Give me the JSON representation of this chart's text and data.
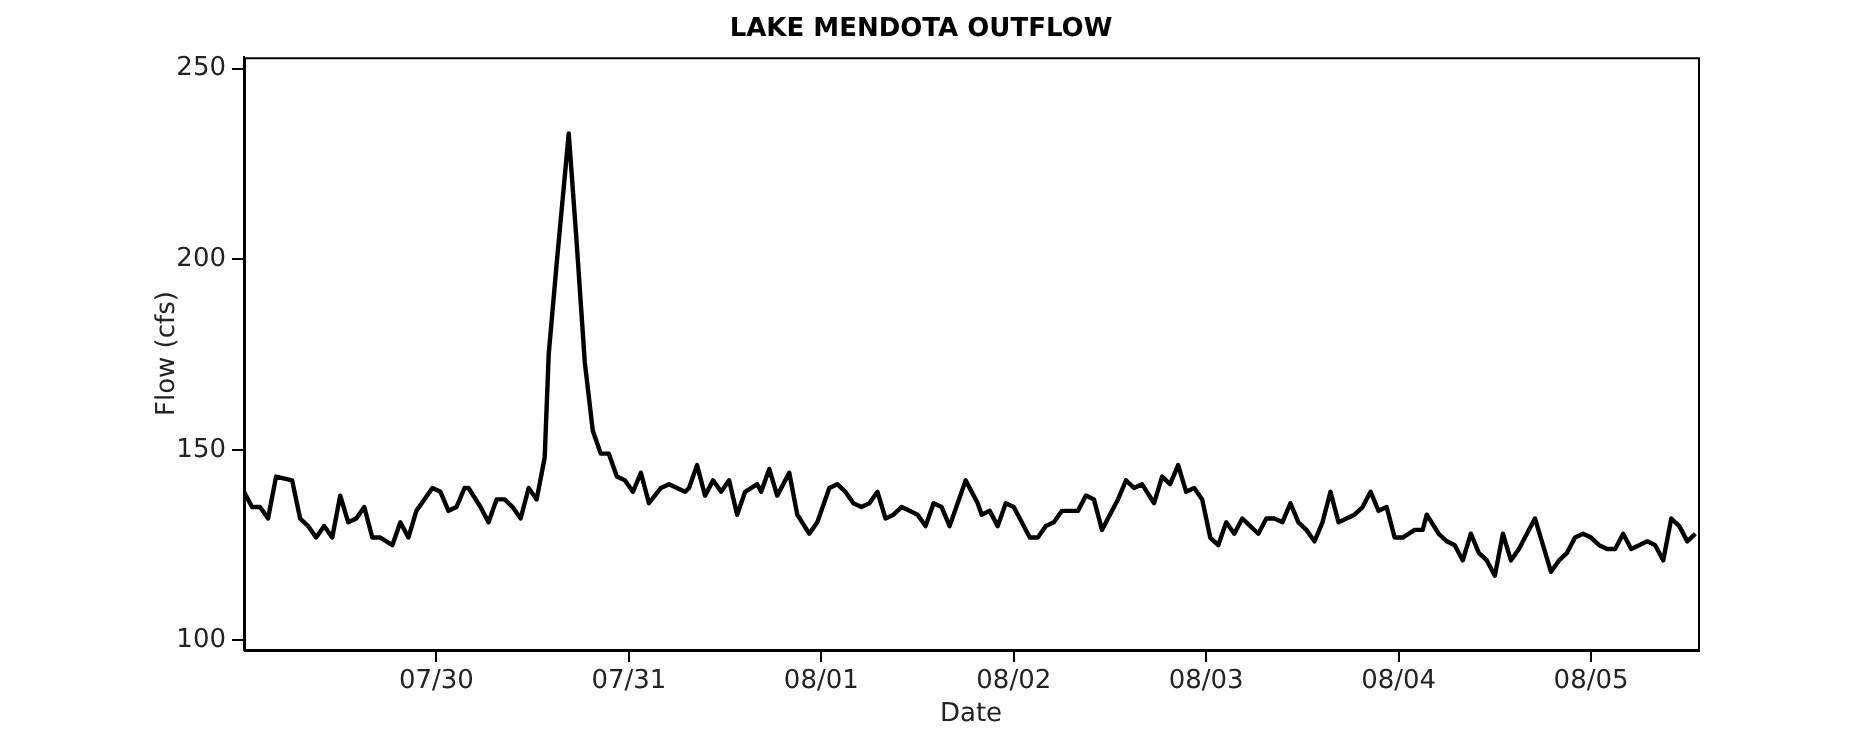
{
  "chart_data": {
    "type": "line",
    "title": "LAKE MENDOTA OUTFLOW",
    "xlabel": "Date",
    "ylabel": "Flow (cfs)",
    "color": "#000000",
    "marker": "none",
    "line_style": "solid",
    "x": [
      "--07-29T00:00",
      "--07-29T01:00",
      "--07-29T02:00",
      "--07-29T03:00",
      "--07-29T04:00",
      "--07-29T06:00",
      "--07-29T07:00",
      "--07-29T08:00",
      "--07-29T09:00",
      "--07-29T10:00",
      "--07-29T11:00",
      "--07-29T12:00",
      "--07-29T13:00",
      "--07-29T14:00",
      "--07-29T15:00",
      "--07-29T16:00",
      "--07-29T17:00",
      "--07-29T18:30",
      "--07-29T19:30",
      "--07-29T20:30",
      "--07-29T21:30",
      "--07-29T23:30",
      "--07-30T00:30",
      "--07-30T01:30",
      "--07-30T02:30",
      "--07-30T03:30",
      "--07-30T04:00",
      "--07-30T05:30",
      "--07-30T06:30",
      "--07-30T07:30",
      "--07-30T08:30",
      "--07-30T09:30",
      "--07-30T10:30",
      "--07-30T11:30",
      "--07-30T12:30",
      "--07-30T13:30",
      "--07-30T14:00",
      "--07-30T15:00",
      "--07-30T16:30",
      "--07-30T17:30",
      "--07-30T18:30",
      "--07-30T19:30",
      "--07-30T20:30",
      "--07-30T21:30",
      "--07-30T22:30",
      "--07-30T23:30",
      "--07-31T00:30",
      "--07-31T01:30",
      "--07-31T02:30",
      "--07-31T04:00",
      "--07-31T05:00",
      "--07-31T07:00",
      "--07-31T07:30",
      "--07-31T08:30",
      "--07-31T09:30",
      "--07-31T10:30",
      "--07-31T11:30",
      "--07-31T12:30",
      "--07-31T13:30",
      "--07-31T14:30",
      "--07-31T16:00",
      "--07-31T16:30",
      "--07-31T17:30",
      "--07-31T18:30",
      "--07-31T20:00",
      "--07-31T21:00",
      "--07-31T22:30",
      "--07-31T23:30",
      "--08-01T01:00",
      "--08-01T02:00",
      "--08-01T03:00",
      "--08-01T04:00",
      "--08-01T05:00",
      "--08-01T06:00",
      "--08-01T07:00",
      "--08-01T08:00",
      "--08-01T09:00",
      "--08-01T10:00",
      "--08-01T11:00",
      "--08-01T12:00",
      "--08-01T13:00",
      "--08-01T14:00",
      "--08-01T15:00",
      "--08-01T16:00",
      "--08-01T17:00",
      "--08-01T18:00",
      "--08-01T19:30",
      "--08-01T20:00",
      "--08-01T21:00",
      "--08-01T22:00",
      "--08-01T23:00",
      "--08-02T00:00",
      "--08-02T01:00",
      "--08-02T02:00",
      "--08-02T03:00",
      "--08-02T04:00",
      "--08-02T05:00",
      "--08-02T06:00",
      "--08-02T08:00",
      "--08-02T09:00",
      "--08-02T10:00",
      "--08-02T11:00",
      "--08-02T12:30",
      "--08-02T13:00",
      "--08-02T14:00",
      "--08-02T15:00",
      "--08-02T16:00",
      "--08-02T17:30",
      "--08-02T18:30",
      "--08-02T19:30",
      "--08-02T20:30",
      "--08-02T21:30",
      "--08-02T22:30",
      "--08-02T23:30",
      "--08-03T00:30",
      "--08-03T01:30",
      "--08-03T02:30",
      "--08-03T03:30",
      "--08-03T04:30",
      "--08-03T05:30",
      "--08-03T06:30",
      "--08-03T07:30",
      "--08-03T08:30",
      "--08-03T09:30",
      "--08-03T10:30",
      "--08-03T11:30",
      "--08-03T12:30",
      "--08-03T13:30",
      "--08-03T14:30",
      "--08-03T15:30",
      "--08-03T16:30",
      "--08-03T17:30",
      "--08-03T18:30",
      "--08-03T19:30",
      "--08-03T20:30",
      "--08-03T21:30",
      "--08-03T22:30",
      "--08-03T23:30",
      "--08-04T00:30",
      "--08-04T02:00",
      "--08-04T03:00",
      "--08-04T03:30",
      "--08-04T05:00",
      "--08-04T06:00",
      "--08-04T07:00",
      "--08-04T08:00",
      "--08-04T09:00",
      "--08-04T10:00",
      "--08-04T11:00",
      "--08-04T12:00",
      "--08-04T13:00",
      "--08-04T14:00",
      "--08-04T15:00",
      "--08-04T16:00",
      "--08-04T17:00",
      "--08-04T18:00",
      "--08-04T19:00",
      "--08-04T20:00",
      "--08-04T21:00",
      "--08-04T22:00",
      "--08-04T23:00",
      "--08-05T00:00",
      "--08-05T01:00",
      "--08-05T02:00",
      "--08-05T03:00",
      "--08-05T04:00",
      "--08-05T05:00",
      "--08-05T06:00",
      "--08-05T07:00",
      "--08-05T08:00",
      "--08-05T09:00",
      "--08-05T10:00",
      "--08-05T11:00",
      "--08-05T12:00",
      "--08-05T13:00"
    ],
    "values": [
      139,
      135,
      135,
      132,
      143,
      142,
      132,
      130,
      127,
      130,
      127,
      138,
      131,
      132,
      135,
      127,
      127,
      125,
      131,
      127,
      134,
      140,
      139,
      134,
      135,
      140,
      140,
      135,
      131,
      137,
      137,
      135,
      132,
      140,
      137,
      148,
      175,
      199,
      233,
      204,
      173,
      155,
      149,
      149,
      143,
      142,
      139,
      144,
      136,
      140,
      141,
      139,
      140,
      146,
      138,
      142,
      139,
      142,
      133,
      139,
      141,
      139,
      145,
      138,
      144,
      133,
      128,
      131,
      140,
      141,
      139,
      136,
      135,
      136,
      139,
      132,
      133,
      135,
      134,
      133,
      130,
      136,
      135,
      130,
      136,
      142,
      136,
      133,
      134,
      130,
      136,
      135,
      131,
      127,
      127,
      130,
      131,
      134,
      134,
      138,
      137,
      129,
      135,
      137,
      142,
      140,
      141,
      136,
      143,
      141,
      146,
      139,
      140,
      137,
      127,
      125,
      131,
      128,
      132,
      130,
      128,
      132,
      132,
      131,
      136,
      131,
      129,
      126,
      131,
      139,
      131,
      132,
      133,
      135,
      139,
      134,
      135,
      127,
      127,
      129,
      129,
      133,
      128,
      126,
      125,
      121,
      128,
      123,
      121,
      117,
      128,
      121,
      124,
      128,
      132,
      125,
      118,
      121,
      123,
      127,
      128,
      127,
      125,
      124,
      124,
      128,
      124,
      125,
      126,
      125,
      121,
      132,
      130,
      126,
      128
    ],
    "xlim": [
      "--07-29T00:00",
      "--08-05T13:20"
    ],
    "xticks": [
      {
        "value": "--07-30",
        "label": "07/30"
      },
      {
        "value": "--07-31",
        "label": "07/31"
      },
      {
        "value": "--08-01",
        "label": "08/01"
      },
      {
        "value": "--08-02",
        "label": "08/02"
      },
      {
        "value": "--08-03",
        "label": "08/03"
      },
      {
        "value": "--08-04",
        "label": "08/04"
      },
      {
        "value": "--08-05",
        "label": "08/05"
      }
    ],
    "ylim": [
      97.5,
      253
    ],
    "yticks": [
      100,
      150,
      200,
      250
    ]
  }
}
